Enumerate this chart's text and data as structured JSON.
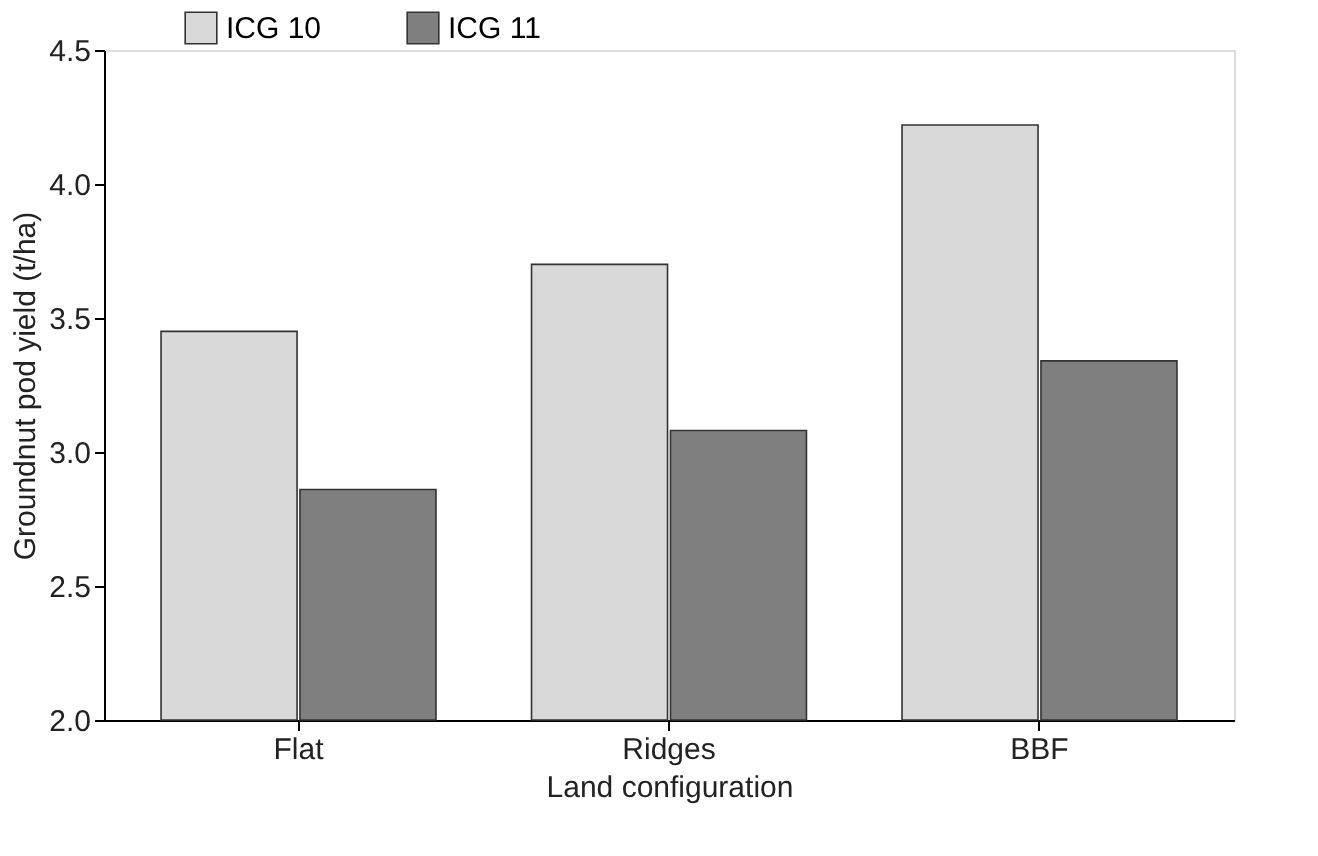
{
  "chart_data": {
    "type": "bar",
    "xlabel": "Land configuration",
    "ylabel": "Groundnut pod yield (t/ha)",
    "categories": [
      "Flat",
      "Ridges",
      "BBF"
    ],
    "series": [
      {
        "name": "ICG 10",
        "color": "#d9d9d9",
        "values": [
          3.45,
          3.7,
          4.22
        ]
      },
      {
        "name": "ICG 11",
        "color": "#7f7f7f",
        "values": [
          2.86,
          3.08,
          3.34
        ]
      }
    ],
    "ylim": [
      2.0,
      4.5
    ],
    "yticks": [
      {
        "value": 2.0,
        "label": "2.0"
      },
      {
        "value": 2.5,
        "label": "2.5"
      },
      {
        "value": 3.0,
        "label": "3.0"
      },
      {
        "value": 3.5,
        "label": "3.5"
      },
      {
        "value": 4.0,
        "label": "4.0"
      },
      {
        "value": 4.5,
        "label": "4.5"
      }
    ],
    "grid": false,
    "legend": "top left"
  }
}
